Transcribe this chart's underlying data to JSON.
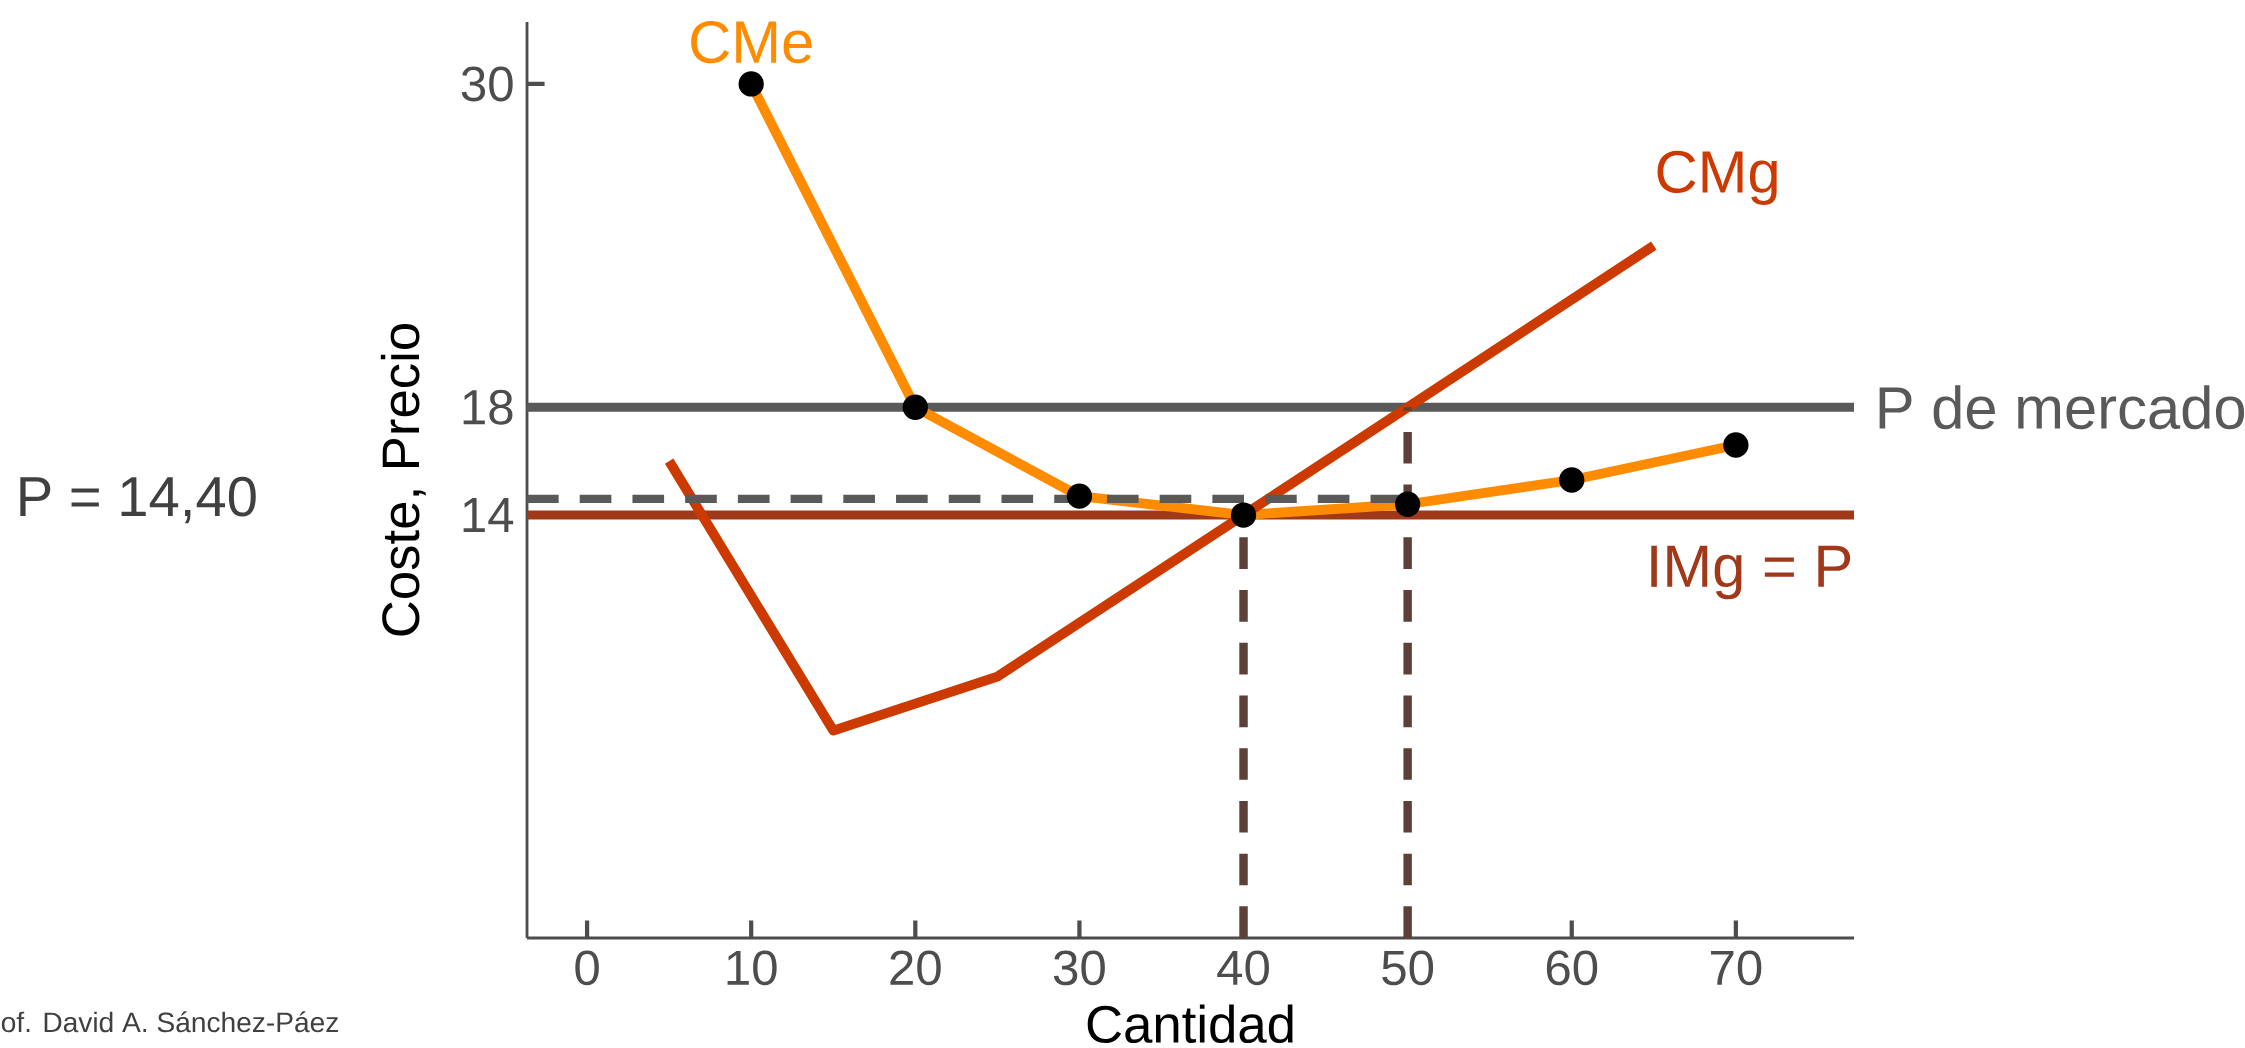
{
  "chart_data": {
    "type": "line",
    "xlabel": "Cantidad",
    "ylabel": "Coste, Precio",
    "xlim": [
      -3.66,
      77.2
    ],
    "ylim": [
      -1.7,
      32.3
    ],
    "xticks": [
      0,
      10,
      20,
      30,
      40,
      50,
      60,
      70
    ],
    "yticks": [
      14,
      18,
      30
    ],
    "series": [
      {
        "name": "CMe",
        "color": "#ff8c00",
        "marker": "circle",
        "x": [
          10,
          20,
          30,
          40,
          50,
          60,
          70
        ],
        "values": [
          30,
          18,
          14.7,
          14,
          14.4,
          15.3,
          16.6
        ]
      },
      {
        "name": "CMg",
        "color": "#cc3a00",
        "x": [
          5,
          15,
          25,
          40,
          50,
          65
        ],
        "values": [
          16,
          6,
          8,
          14,
          18,
          24
        ]
      },
      {
        "color": "#595959",
        "line_style": "dashed",
        "x": [
          -3.66,
          50
        ],
        "values": [
          14.6,
          14.6
        ]
      },
      {
        "color": "#5d4037",
        "line_style": "dashed",
        "x": [
          40,
          40
        ],
        "values": [
          -1.7,
          14
        ]
      },
      {
        "color": "#5d4037",
        "line_style": "dashed",
        "x": [
          50,
          50
        ],
        "values": [
          -1.7,
          18
        ]
      }
    ],
    "ref_lines": [
      {
        "axis": "y",
        "value": 18,
        "label": "P de mercado",
        "color": "#595959"
      },
      {
        "axis": "y",
        "value": 14,
        "label": "IMg = P",
        "color": "#a0391a"
      }
    ],
    "annotations": [
      "P = 14,40",
      "of. David A. Sánchez-Páez"
    ]
  }
}
